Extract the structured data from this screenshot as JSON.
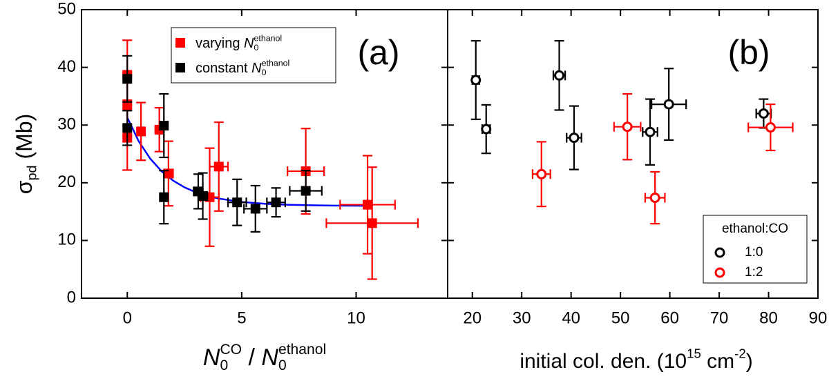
{
  "chart_data": [
    {
      "type": "scatter",
      "panel_label": "(a)",
      "xlabel": [
        {
          "text": "N",
          "pos": "it"
        },
        {
          "text": "0",
          "pos": "sub"
        },
        {
          "text": "CO",
          "pos": "sup"
        },
        {
          "text": " / "
        },
        {
          "text": "N",
          "pos": "it"
        },
        {
          "text": "0",
          "pos": "sub"
        },
        {
          "text": "ethanol",
          "pos": "sup"
        }
      ],
      "ylabel": [
        {
          "text": "σ"
        },
        {
          "text": "pd",
          "pos": "sub"
        },
        {
          "text": " (Mb)"
        }
      ],
      "xlim": [
        -2,
        14
      ],
      "ylim": [
        0,
        50
      ],
      "xticks": [
        0,
        5,
        10
      ],
      "yticks": [
        0,
        10,
        20,
        30,
        40,
        50
      ],
      "series": [
        {
          "name": [
            {
              "text": "varying "
            },
            {
              "text": "N",
              "pos": "it"
            },
            {
              "text": "0",
              "pos": "sub"
            },
            {
              "text": "ethanol",
              "pos": "sup"
            }
          ],
          "color": "#ff0000",
          "marker": "square",
          "x": [
            0,
            0,
            0,
            0.6,
            1.4,
            1.8,
            3.6,
            4.0,
            7.8,
            10.5,
            10.7
          ],
          "values": [
            38.7,
            33.6,
            27.8,
            28.9,
            29.2,
            21.6,
            17.5,
            22.8,
            22.0,
            16.2,
            13.0
          ],
          "xerr": [
            0.1,
            0.1,
            0.1,
            0.1,
            0.1,
            0.2,
            0.4,
            0.4,
            0.8,
            1.2,
            2.0
          ],
          "yerr": [
            6.0,
            5.5,
            5.6,
            5.0,
            3.8,
            5.6,
            8.5,
            7.7,
            7.4,
            8.5,
            9.7
          ]
        },
        {
          "name": [
            {
              "text": "constant "
            },
            {
              "text": "N",
              "pos": "it"
            },
            {
              "text": "0",
              "pos": "sub"
            },
            {
              "text": "ethanol",
              "pos": "sup"
            }
          ],
          "color": "#000000",
          "marker": "square",
          "x": [
            0,
            0,
            1.6,
            1.6,
            3.1,
            3.3,
            4.8,
            5.6,
            6.5,
            7.8
          ],
          "values": [
            38.0,
            29.5,
            29.9,
            17.5,
            18.5,
            17.7,
            16.6,
            15.5,
            16.6,
            18.6
          ],
          "xerr": [
            0.1,
            0.1,
            0.1,
            0.1,
            0.2,
            0.2,
            0.4,
            0.5,
            0.4,
            0.7
          ],
          "yerr": [
            4.0,
            3.0,
            5.5,
            4.6,
            3.0,
            4.0,
            4.0,
            4.0,
            2.5,
            3.5
          ]
        }
      ],
      "fit": {
        "color": "#0000ff",
        "x": [
          0,
          0.5,
          1,
          1.5,
          2,
          2.5,
          3,
          3.5,
          4,
          5,
          6,
          7,
          8,
          9,
          10.4
        ],
        "values": [
          31.3,
          27.19,
          24.19,
          21.99,
          20.38,
          19.21,
          18.35,
          17.72,
          17.26,
          16.67,
          16.36,
          16.19,
          16.1,
          16.05,
          16.02
        ]
      }
    },
    {
      "type": "scatter",
      "panel_label": "(b)",
      "xlabel": [
        {
          "text": "initial col. den. (10"
        },
        {
          "text": "15",
          "pos": "sup"
        },
        {
          "text": " cm"
        },
        {
          "text": "-2",
          "pos": "sup"
        },
        {
          "text": ")"
        }
      ],
      "xlim": [
        15,
        90
      ],
      "ylim": [
        0,
        50
      ],
      "xticks": [
        20,
        30,
        40,
        50,
        60,
        70,
        80,
        90
      ],
      "legend_title": "ethanol:CO",
      "series": [
        {
          "name": "1:0",
          "color": "#000000",
          "marker": "open-circle",
          "x": [
            20.7,
            22.8,
            37.6,
            40.6,
            56,
            59.8,
            79
          ],
          "values": [
            37.8,
            29.3,
            38.6,
            27.8,
            28.8,
            33.6,
            32.0
          ],
          "xerr": [
            0.7,
            0.8,
            1.2,
            1.5,
            1.5,
            3.5,
            1.5
          ],
          "yerr": [
            6.8,
            4.2,
            6.0,
            5.5,
            5.7,
            6.2,
            2.5
          ]
        },
        {
          "name": "1:2",
          "color": "#ff0000",
          "marker": "open-circle",
          "x": [
            34,
            51.4,
            57,
            80.4
          ],
          "values": [
            21.5,
            29.7,
            17.4,
            29.6
          ],
          "xerr": [
            1.8,
            2.7,
            2.0,
            4.5
          ],
          "yerr": [
            5.6,
            5.7,
            4.5,
            4.0
          ]
        }
      ]
    }
  ]
}
